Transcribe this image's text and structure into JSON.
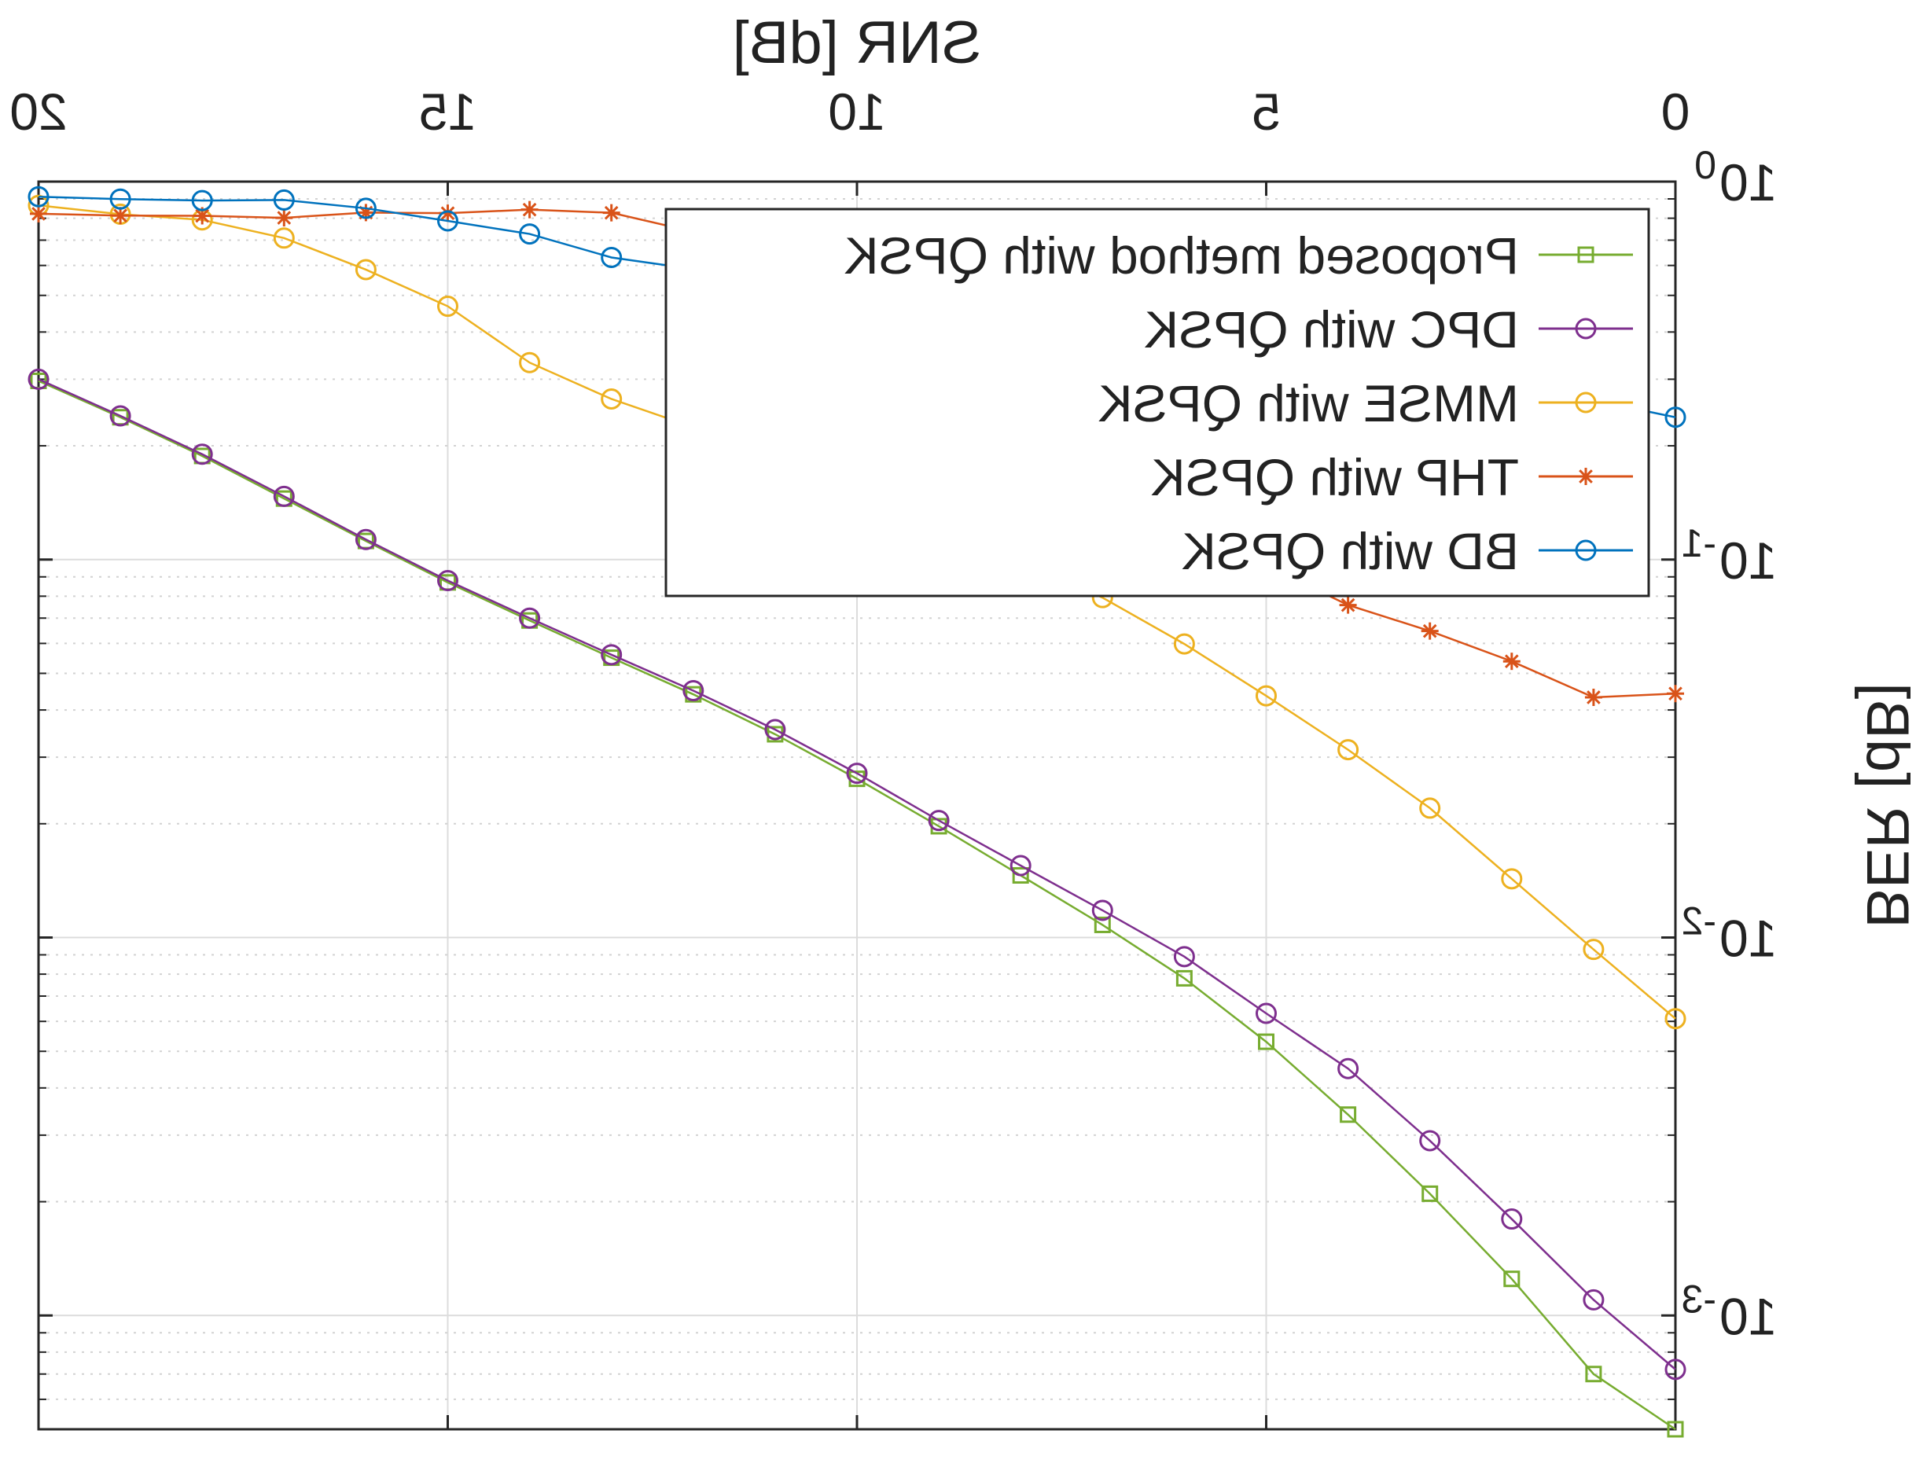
{
  "chart_data": {
    "type": "line",
    "title": "",
    "xlabel": "SNR [dB]",
    "ylabel": "BER [dB]",
    "x_axis_position": "top",
    "xlim": [
      0,
      20
    ],
    "ylim": [
      0.0005,
      1
    ],
    "yscale": "log",
    "grid": true,
    "minor_grid": true,
    "legend_position": "top-left",
    "mirrored_horizontally": true,
    "xticks": [
      "0",
      "5",
      "10",
      "15",
      "20"
    ],
    "yticks": [
      {
        "base": "10",
        "exp": "0"
      },
      {
        "base": "10",
        "exp": "-1"
      },
      {
        "base": "10",
        "exp": "-2"
      },
      {
        "base": "10",
        "exp": "-3"
      }
    ],
    "x": [
      0,
      1,
      2,
      3,
      4,
      5,
      6,
      7,
      8,
      9,
      10,
      11,
      12,
      13,
      14,
      15,
      16,
      17,
      18,
      19,
      20
    ],
    "series": [
      {
        "name": "Proposed method with QPSK",
        "color": "#77ac30",
        "marker": "square",
        "values": [
          0.0005,
          0.0007,
          0.00125,
          0.0021,
          0.0034,
          0.0053,
          0.0078,
          0.0108,
          0.0146,
          0.0197,
          0.0263,
          0.0345,
          0.044,
          0.055,
          0.069,
          0.087,
          0.112,
          0.145,
          0.188,
          0.238,
          0.297
        ]
      },
      {
        "name": "DPC with QPSK",
        "color": "#7e2f8e",
        "marker": "circle",
        "values": [
          0.00072,
          0.0011,
          0.0018,
          0.0029,
          0.0045,
          0.0063,
          0.0089,
          0.0118,
          0.0155,
          0.0204,
          0.0272,
          0.0355,
          0.045,
          0.056,
          0.07,
          0.088,
          0.113,
          0.147,
          0.19,
          0.24,
          0.3
        ]
      },
      {
        "name": "MMSE with QPSK",
        "color": "#edb120",
        "marker": "circle",
        "values": [
          0.0061,
          0.0093,
          0.0143,
          0.022,
          0.0314,
          0.0436,
          0.0598,
          0.0793,
          0.0998,
          0.13,
          0.156,
          0.19,
          0.224,
          0.266,
          0.332,
          0.468,
          0.585,
          0.709,
          0.792,
          0.82,
          0.865
        ]
      },
      {
        "name": "THP with QPSK",
        "color": "#d95319",
        "marker": "star",
        "values": [
          0.0442,
          0.0432,
          0.0538,
          0.0647,
          0.0758,
          0.0965,
          0.13,
          0.19,
          0.26,
          0.356,
          0.48,
          0.635,
          0.737,
          0.827,
          0.843,
          0.825,
          0.828,
          0.802,
          0.812,
          0.813,
          0.822
        ]
      },
      {
        "name": "BD with QPSK",
        "color": "#0072bd",
        "marker": "circle",
        "values": [
          0.238,
          0.264,
          0.291,
          0.35,
          0.375,
          0.427,
          0.449,
          0.473,
          0.495,
          0.515,
          0.536,
          0.553,
          0.587,
          0.63,
          0.727,
          0.787,
          0.85,
          0.894,
          0.891,
          0.899,
          0.912
        ]
      }
    ]
  }
}
